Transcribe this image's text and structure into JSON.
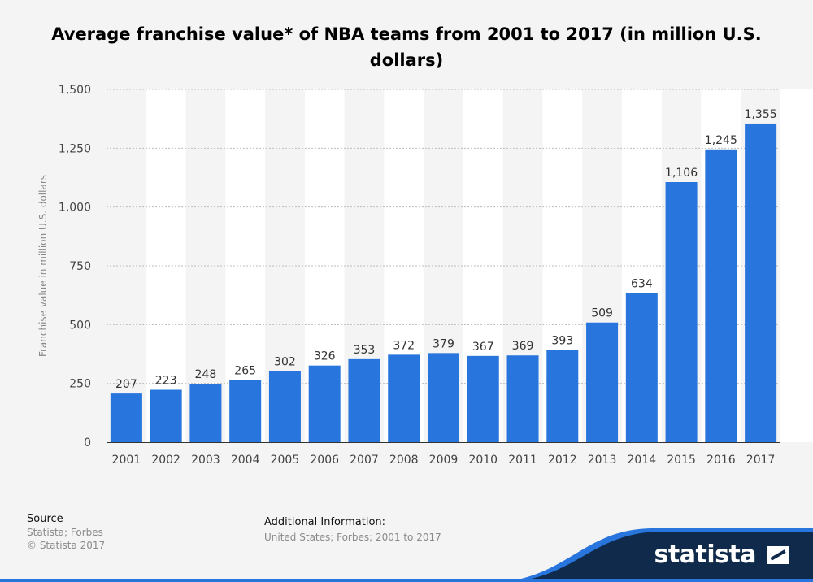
{
  "chart_data": {
    "type": "bar",
    "title": "Average franchise value* of NBA teams from 2001 to 2017 (in million U.S. dollars)",
    "xlabel": "",
    "ylabel": "Franchise value in million U.S. dollars",
    "categories": [
      "2001",
      "2002",
      "2003",
      "2004",
      "2005",
      "2006",
      "2007",
      "2008",
      "2009",
      "2010",
      "2011",
      "2012",
      "2013",
      "2014",
      "2015",
      "2016",
      "2017"
    ],
    "values": [
      207,
      223,
      248,
      265,
      302,
      326,
      353,
      372,
      379,
      367,
      369,
      393,
      509,
      634,
      1106,
      1245,
      1355
    ],
    "value_labels": [
      "207",
      "223",
      "248",
      "265",
      "302",
      "326",
      "353",
      "372",
      "379",
      "367",
      "369",
      "393",
      "509",
      "634",
      "1,106",
      "1,245",
      "1,355"
    ],
    "ylim": [
      0,
      1500
    ],
    "yticks": [
      0,
      250,
      500,
      750,
      1000,
      1250,
      1500
    ],
    "ytick_labels": [
      "0",
      "250",
      "500",
      "750",
      "1,000",
      "1,250",
      "1,500"
    ],
    "grid": true,
    "bar_color": "#2876dd"
  },
  "footer": {
    "source_heading": "Source",
    "source_line1": "Statista; Forbes",
    "source_line2": "© Statista 2017",
    "additional_heading": "Additional Information:",
    "additional_text": "United States; Forbes; 2001 to 2017"
  },
  "brand": {
    "logo_text": "statista",
    "color": "#0f2a4a",
    "accent": "#2876dd"
  }
}
